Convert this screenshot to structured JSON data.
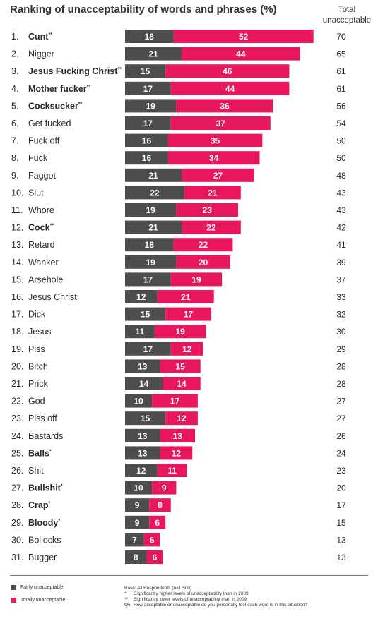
{
  "title": "Ranking of unacceptability of words and phrases (%)",
  "total_header": [
    "Total",
    "unacceptable"
  ],
  "colors": {
    "fairly": "#4d4d4f",
    "totally": "#e8175d"
  },
  "chart_data": {
    "type": "bar",
    "stacked": true,
    "orientation": "horizontal",
    "title": "Ranking of unacceptability of words and phrases (%)",
    "series_names": [
      "Fairly unacceptable",
      "Totally unacceptable"
    ],
    "rows": [
      {
        "rank": "1.",
        "word": "Cunt",
        "mark": "**",
        "bold": true,
        "fairly": 18,
        "totally": 52,
        "total": 70
      },
      {
        "rank": "2.",
        "word": "Nigger",
        "mark": "",
        "bold": false,
        "fairly": 21,
        "totally": 44,
        "total": 65
      },
      {
        "rank": "3.",
        "word": "Jesus Fucking Christ",
        "mark": "**",
        "bold": true,
        "fairly": 15,
        "totally": 46,
        "total": 61
      },
      {
        "rank": "4.",
        "word": "Mother fucker",
        "mark": "**",
        "bold": true,
        "fairly": 17,
        "totally": 44,
        "total": 61
      },
      {
        "rank": "5.",
        "word": "Cocksucker",
        "mark": "**",
        "bold": true,
        "fairly": 19,
        "totally": 36,
        "total": 56
      },
      {
        "rank": "6.",
        "word": "Get fucked",
        "mark": "",
        "bold": false,
        "fairly": 17,
        "totally": 37,
        "total": 54
      },
      {
        "rank": "7.",
        "word": "Fuck off",
        "mark": "",
        "bold": false,
        "fairly": 16,
        "totally": 35,
        "total": 50
      },
      {
        "rank": "8.",
        "word": "Fuck",
        "mark": "",
        "bold": false,
        "fairly": 16,
        "totally": 34,
        "total": 50
      },
      {
        "rank": "9.",
        "word": "Faggot",
        "mark": "",
        "bold": false,
        "fairly": 21,
        "totally": 27,
        "total": 48
      },
      {
        "rank": "10.",
        "word": "Slut",
        "mark": "",
        "bold": false,
        "fairly": 22,
        "totally": 21,
        "total": 43
      },
      {
        "rank": "11.",
        "word": "Whore",
        "mark": "",
        "bold": false,
        "fairly": 19,
        "totally": 23,
        "total": 43
      },
      {
        "rank": "12.",
        "word": "Cock",
        "mark": "**",
        "bold": true,
        "fairly": 21,
        "totally": 22,
        "total": 42
      },
      {
        "rank": "13.",
        "word": "Retard",
        "mark": "",
        "bold": false,
        "fairly": 18,
        "totally": 22,
        "total": 41
      },
      {
        "rank": "14.",
        "word": "Wanker",
        "mark": "",
        "bold": false,
        "fairly": 19,
        "totally": 20,
        "total": 39
      },
      {
        "rank": "15.",
        "word": "Arsehole",
        "mark": "",
        "bold": false,
        "fairly": 17,
        "totally": 19,
        "total": 37
      },
      {
        "rank": "16.",
        "word": "Jesus Christ",
        "mark": "",
        "bold": false,
        "fairly": 12,
        "totally": 21,
        "total": 33
      },
      {
        "rank": "17.",
        "word": "Dick",
        "mark": "",
        "bold": false,
        "fairly": 15,
        "totally": 17,
        "total": 32
      },
      {
        "rank": "18.",
        "word": "Jesus",
        "mark": "",
        "bold": false,
        "fairly": 11,
        "totally": 19,
        "total": 30
      },
      {
        "rank": "19.",
        "word": "Piss",
        "mark": "",
        "bold": false,
        "fairly": 17,
        "totally": 12,
        "total": 29
      },
      {
        "rank": "20.",
        "word": "Bitch",
        "mark": "",
        "bold": false,
        "fairly": 13,
        "totally": 15,
        "total": 28
      },
      {
        "rank": "21.",
        "word": "Prick",
        "mark": "",
        "bold": false,
        "fairly": 14,
        "totally": 14,
        "total": 28
      },
      {
        "rank": "22.",
        "word": "God",
        "mark": "",
        "bold": false,
        "fairly": 10,
        "totally": 17,
        "total": 27
      },
      {
        "rank": "23.",
        "word": "Piss off",
        "mark": "",
        "bold": false,
        "fairly": 15,
        "totally": 12,
        "total": 27
      },
      {
        "rank": "24.",
        "word": "Bastards",
        "mark": "",
        "bold": false,
        "fairly": 13,
        "totally": 13,
        "total": 26
      },
      {
        "rank": "25.",
        "word": "Balls",
        "mark": "*",
        "bold": true,
        "fairly": 13,
        "totally": 12,
        "total": 24
      },
      {
        "rank": "26.",
        "word": "Shit",
        "mark": "",
        "bold": false,
        "fairly": 12,
        "totally": 11,
        "total": 23
      },
      {
        "rank": "27.",
        "word": "Bullshit",
        "mark": "*",
        "bold": true,
        "fairly": 10,
        "totally": 9,
        "total": 20
      },
      {
        "rank": "28.",
        "word": "Crap",
        "mark": "*",
        "bold": true,
        "fairly": 9,
        "totally": 8,
        "total": 17
      },
      {
        "rank": "29.",
        "word": "Bloody",
        "mark": "*",
        "bold": true,
        "fairly": 9,
        "totally": 6,
        "total": 15
      },
      {
        "rank": "30.",
        "word": "Bollocks",
        "mark": "",
        "bold": false,
        "fairly": 7,
        "totally": 6,
        "total": 13
      },
      {
        "rank": "31.",
        "word": "Bugger",
        "mark": "",
        "bold": false,
        "fairly": 8,
        "totally": 6,
        "total": 13
      }
    ]
  },
  "legend": {
    "fairly": "Fairly unacceptable",
    "totally": "Totally unacceptable"
  },
  "notes": {
    "base": "Base: All Respondents (n=1,500)",
    "items": [
      {
        "mark": "*",
        "text": "Significantly higher levels of unacceptability than in 2009"
      },
      {
        "mark": "**",
        "text": "Significantly lower levels of unacceptability than in 2009"
      },
      {
        "mark": "Q6.",
        "text": "How acceptable or unacceptable do you personally feel each word is in this situation?"
      }
    ]
  }
}
